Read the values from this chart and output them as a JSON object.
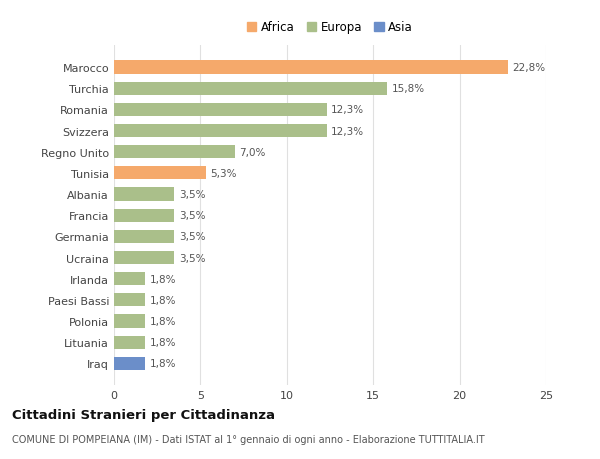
{
  "countries": [
    "Marocco",
    "Turchia",
    "Romania",
    "Svizzera",
    "Regno Unito",
    "Tunisia",
    "Albania",
    "Francia",
    "Germania",
    "Ucraina",
    "Irlanda",
    "Paesi Bassi",
    "Polonia",
    "Lituania",
    "Iraq"
  ],
  "values": [
    22.8,
    15.8,
    12.3,
    12.3,
    7.0,
    5.3,
    3.5,
    3.5,
    3.5,
    3.5,
    1.8,
    1.8,
    1.8,
    1.8,
    1.8
  ],
  "labels": [
    "22,8%",
    "15,8%",
    "12,3%",
    "12,3%",
    "7,0%",
    "5,3%",
    "3,5%",
    "3,5%",
    "3,5%",
    "3,5%",
    "1,8%",
    "1,8%",
    "1,8%",
    "1,8%",
    "1,8%"
  ],
  "continents": [
    "Africa",
    "Europa",
    "Europa",
    "Europa",
    "Europa",
    "Africa",
    "Europa",
    "Europa",
    "Europa",
    "Europa",
    "Europa",
    "Europa",
    "Europa",
    "Europa",
    "Asia"
  ],
  "colors": {
    "Africa": "#F5A96B",
    "Europa": "#AABF8A",
    "Asia": "#6B8EC9"
  },
  "legend_order": [
    "Africa",
    "Europa",
    "Asia"
  ],
  "xlim": [
    0,
    25
  ],
  "xticks": [
    0,
    5,
    10,
    15,
    20,
    25
  ],
  "title": "Cittadini Stranieri per Cittadinanza",
  "subtitle": "COMUNE DI POMPEIANA (IM) - Dati ISTAT al 1° gennaio di ogni anno - Elaborazione TUTTITALIA.IT",
  "background_color": "#ffffff",
  "grid_color": "#e0e0e0",
  "bar_height": 0.62,
  "label_fontsize": 7.5,
  "ytick_fontsize": 8,
  "xtick_fontsize": 8,
  "legend_fontsize": 8.5,
  "title_fontsize": 9.5,
  "subtitle_fontsize": 7
}
